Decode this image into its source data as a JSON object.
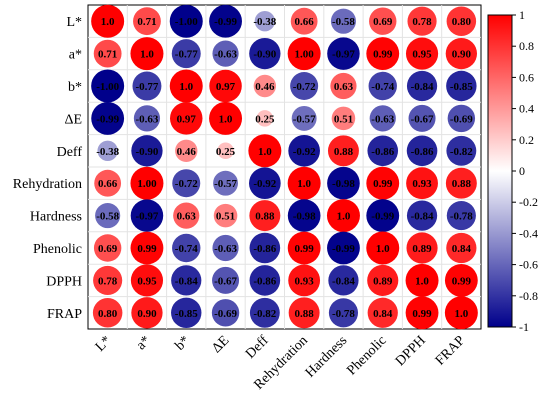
{
  "chart_data": {
    "type": "heatmap",
    "title": "",
    "labels": [
      "L*",
      "a*",
      "b*",
      "ΔE",
      "Deff",
      "Rehydration",
      "Hardness",
      "Phenolic",
      "DPPH",
      "FRAP"
    ],
    "matrix": [
      [
        1.0,
        0.71,
        -1.0,
        -0.99,
        -0.38,
        0.66,
        -0.58,
        0.69,
        0.78,
        0.8
      ],
      [
        0.71,
        1.0,
        -0.77,
        -0.63,
        -0.9,
        1.0,
        -0.97,
        0.99,
        0.95,
        0.9
      ],
      [
        -1.0,
        -0.77,
        1.0,
        0.97,
        0.46,
        -0.72,
        0.63,
        -0.74,
        -0.84,
        -0.85
      ],
      [
        -0.99,
        -0.63,
        0.97,
        1.0,
        0.25,
        -0.57,
        0.51,
        -0.63,
        -0.67,
        -0.69
      ],
      [
        -0.38,
        -0.9,
        0.46,
        0.25,
        1.0,
        -0.92,
        0.88,
        -0.86,
        -0.86,
        -0.82
      ],
      [
        0.66,
        1.0,
        -0.72,
        -0.57,
        -0.92,
        1.0,
        -0.98,
        0.99,
        0.93,
        0.88
      ],
      [
        -0.58,
        -0.97,
        0.63,
        0.51,
        0.88,
        -0.98,
        1.0,
        -0.99,
        -0.84,
        -0.78
      ],
      [
        0.69,
        0.99,
        -0.74,
        -0.63,
        -0.86,
        0.99,
        -0.99,
        1.0,
        0.89,
        0.84
      ],
      [
        0.78,
        0.95,
        -0.84,
        -0.67,
        -0.86,
        0.93,
        -0.84,
        0.89,
        1.0,
        0.99
      ],
      [
        0.8,
        0.9,
        -0.85,
        -0.69,
        -0.82,
        0.88,
        -0.78,
        0.84,
        0.99,
        1.0
      ]
    ],
    "value_labels": [
      [
        "1.0",
        "0.71",
        "-1.00",
        "-0.99",
        "-0.38",
        "0.66",
        "-0.58",
        "0.69",
        "0.78",
        "0.80"
      ],
      [
        "0.71",
        "1.0",
        "-0.77",
        "-0.63",
        "-0.90",
        "1.00",
        "-0.97",
        "0.99",
        "0.95",
        "0.90"
      ],
      [
        "-1.00",
        "-0.77",
        "1.0",
        "0.97",
        "0.46",
        "-0.72",
        "0.63",
        "-0.74",
        "-0.84",
        "-0.85"
      ],
      [
        "-0.99",
        "-0.63",
        "0.97",
        "1.0",
        "0.25",
        "-0.57",
        "0.51",
        "-0.63",
        "-0.67",
        "-0.69"
      ],
      [
        "-0.38",
        "-0.90",
        "0.46",
        "0.25",
        "1.0",
        "-0.92",
        "0.88",
        "-0.86",
        "-0.86",
        "-0.82"
      ],
      [
        "0.66",
        "1.00",
        "-0.72",
        "-0.57",
        "-0.92",
        "1.0",
        "-0.98",
        "0.99",
        "0.93",
        "0.88"
      ],
      [
        "-0.58",
        "-0.97",
        "0.63",
        "0.51",
        "0.88",
        "-0.98",
        "1.0",
        "-0.99",
        "-0.84",
        "-0.78"
      ],
      [
        "0.69",
        "0.99",
        "-0.74",
        "-0.63",
        "-0.86",
        "0.99",
        "-0.99",
        "1.0",
        "0.89",
        "0.84"
      ],
      [
        "0.78",
        "0.95",
        "-0.84",
        "-0.67",
        "-0.86",
        "0.93",
        "-0.84",
        "0.89",
        "1.0",
        "0.99"
      ],
      [
        "0.80",
        "0.90",
        "-0.85",
        "-0.69",
        "-0.82",
        "0.88",
        "-0.78",
        "0.84",
        "0.99",
        "1.0"
      ]
    ],
    "colorbar": {
      "ticks": [
        1,
        0.8,
        0.6,
        0.4,
        0.2,
        0,
        -0.2,
        -0.4,
        -0.6,
        -0.8,
        -1
      ],
      "tick_labels": [
        "1",
        "0.8",
        "0.6",
        "0.4",
        "0.2",
        "0",
        "-0.2",
        "-0.4",
        "-0.6",
        "-0.8",
        "-1"
      ],
      "range": [
        -1,
        1
      ],
      "colors": {
        "negative": "#00008b",
        "neutral": "#ffffff",
        "positive": "#ff0000"
      }
    },
    "grid": true,
    "legend_placement": "right"
  }
}
